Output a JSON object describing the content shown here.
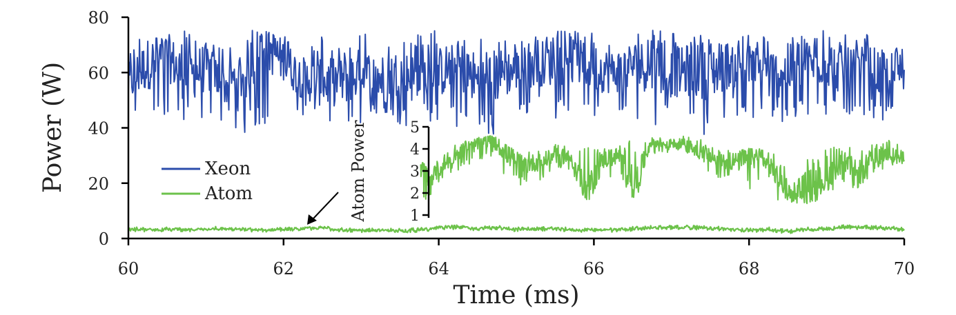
{
  "chart_data": [
    {
      "type": "line",
      "xlabel": "Time (ms)",
      "ylabel": "Power (W)",
      "xlim": [
        60,
        70
      ],
      "ylim": [
        0,
        80
      ],
      "x_ticks": [
        "60",
        "62",
        "64",
        "66",
        "68",
        "70"
      ],
      "y_ticks": [
        "0",
        "20",
        "40",
        "60",
        "80"
      ],
      "grid": false,
      "legend_position": "left",
      "series": [
        {
          "name": "Xeon",
          "color": "#2b4cab",
          "x": [
            60.0,
            60.25,
            60.5,
            60.75,
            61.0,
            61.25,
            61.5,
            61.75,
            62.0,
            62.25,
            62.5,
            62.75,
            63.0,
            63.25,
            63.5,
            63.75,
            64.0,
            64.25,
            64.5,
            64.75,
            65.0,
            65.25,
            65.5,
            65.75,
            66.0,
            66.25,
            66.5,
            66.75,
            67.0,
            67.25,
            67.5,
            67.75,
            68.0,
            68.25,
            68.5,
            68.75,
            69.0,
            69.25,
            69.5,
            69.75,
            70.0
          ],
          "values": [
            56,
            63,
            66,
            58,
            62,
            55,
            60,
            70,
            64,
            58,
            56,
            57,
            60,
            58,
            60,
            57,
            60,
            63,
            57,
            59,
            61,
            63,
            64,
            64,
            62,
            60,
            63,
            62,
            60,
            61,
            60,
            63,
            62,
            59,
            61,
            63,
            64,
            60,
            62,
            59,
            61
          ],
          "min": [
            45,
            41,
            43,
            42,
            40,
            41,
            37,
            41,
            45,
            44,
            43,
            37,
            41,
            45,
            41,
            40,
            43,
            40,
            39,
            36,
            45,
            45,
            43,
            46,
            43,
            45,
            44,
            41,
            42,
            39,
            37,
            43,
            44,
            40,
            42,
            44,
            44,
            42,
            45,
            41,
            44
          ],
          "max": [
            72,
            75,
            74,
            76,
            72,
            68,
            76,
            75,
            73,
            72,
            74,
            70,
            74,
            74,
            72,
            74,
            76,
            74,
            72,
            72,
            72,
            74,
            75,
            75,
            75,
            73,
            75,
            76,
            75,
            74,
            74,
            74,
            75,
            74,
            75,
            74,
            76,
            74,
            75,
            73,
            70
          ]
        },
        {
          "name": "Atom",
          "color": "#6cc24a",
          "x": [
            60.0,
            60.25,
            60.5,
            60.75,
            61.0,
            61.25,
            61.5,
            61.75,
            62.0,
            62.25,
            62.5,
            62.75,
            63.0,
            63.25,
            63.5,
            63.75,
            64.0,
            64.25,
            64.5,
            64.75,
            65.0,
            65.25,
            65.5,
            65.75,
            66.0,
            66.25,
            66.5,
            66.75,
            67.0,
            67.25,
            67.5,
            67.75,
            68.0,
            68.25,
            68.5,
            68.75,
            69.0,
            69.25,
            69.5,
            69.75,
            70.0
          ],
          "values": [
            3.4,
            3.2,
            3.3,
            3.1,
            3.5,
            3.6,
            3.3,
            3.0,
            3.4,
            3.6,
            3.8,
            3.2,
            2.8,
            3.0,
            2.8,
            3.1,
            3.8,
            4.1,
            3.6,
            3.9,
            3.3,
            3.4,
            3.6,
            3.0,
            3.3,
            3.0,
            3.5,
            3.9,
            4.0,
            4.0,
            3.8,
            3.4,
            2.9,
            3.3,
            2.5,
            3.3,
            3.4,
            4.2,
            4.0,
            3.8,
            3.4
          ]
        }
      ],
      "annotation": "Atom Power"
    },
    {
      "type": "line",
      "title": "Atom Power",
      "xlim": [
        64,
        70
      ],
      "ylim": [
        1,
        5
      ],
      "y_ticks": [
        "1",
        "2",
        "3",
        "4",
        "5"
      ],
      "series": [
        {
          "name": "Atom",
          "color": "#6cc24a",
          "x": [
            63.9,
            64.0,
            64.2,
            64.4,
            64.6,
            64.8,
            65.0,
            65.2,
            65.4,
            65.6,
            65.8,
            66.0,
            66.2,
            66.4,
            66.6,
            66.8,
            67.0,
            67.2,
            67.4,
            67.6,
            67.8,
            68.0,
            68.2,
            68.4,
            68.6,
            68.8,
            69.0,
            69.2,
            69.4,
            69.6,
            69.8,
            70.0
          ],
          "values": [
            3.2,
            2.6,
            3.3,
            3.9,
            4.2,
            4.4,
            3.7,
            3.3,
            3.4,
            3.7,
            3.6,
            2.0,
            3.5,
            3.7,
            2.3,
            4.3,
            4.2,
            4.3,
            4.0,
            3.5,
            3.4,
            3.5,
            3.6,
            2.7,
            2.1,
            2.5,
            2.6,
            3.4,
            2.8,
            3.5,
            3.8,
            3.5
          ],
          "min": [
            1.5,
            1.8,
            2.7,
            3.1,
            3.4,
            3.6,
            2.6,
            2.3,
            2.5,
            3.0,
            2.9,
            1.5,
            2.5,
            2.9,
            1.5,
            3.8,
            3.8,
            3.9,
            3.6,
            2.6,
            2.7,
            1.9,
            2.8,
            1.6,
            1.5,
            1.5,
            1.6,
            2.7,
            1.6,
            2.8,
            3.2,
            3.0
          ],
          "max": [
            3.4,
            3.3,
            3.9,
            4.3,
            4.5,
            4.6,
            4.3,
            3.9,
            3.9,
            4.2,
            4.1,
            4.2,
            4.0,
            4.3,
            4.4,
            4.6,
            4.5,
            4.6,
            4.5,
            4.1,
            4.0,
            4.0,
            4.1,
            3.7,
            3.2,
            3.6,
            4.1,
            4.2,
            4.0,
            4.3,
            4.4,
            4.4
          ]
        }
      ]
    }
  ]
}
